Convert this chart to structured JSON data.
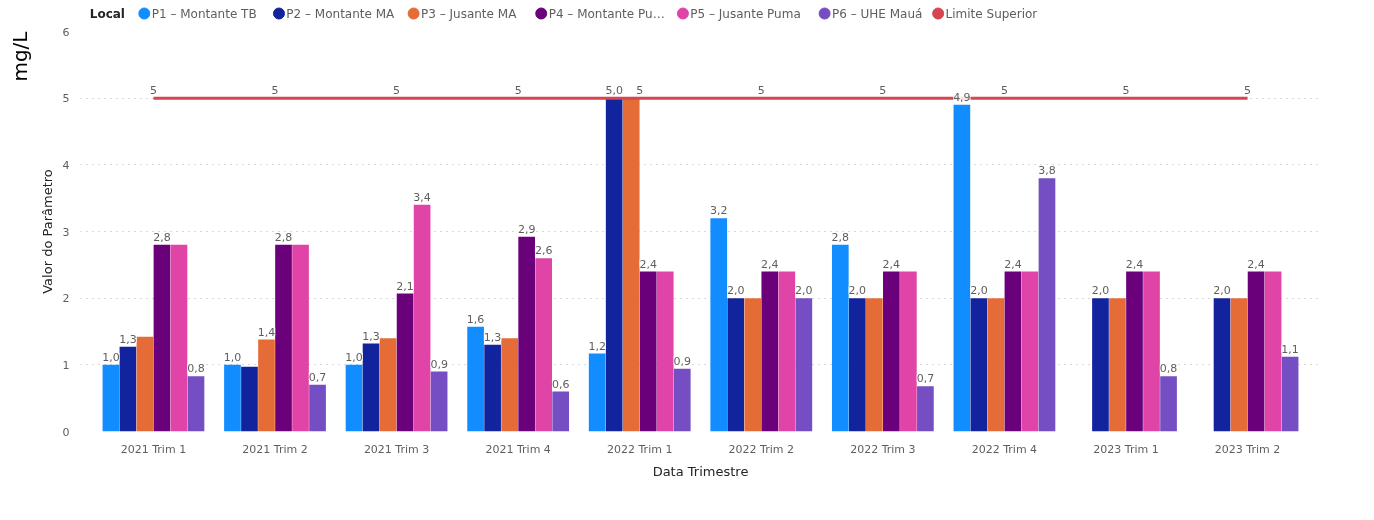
{
  "chart_data": {
    "type": "bar",
    "legend_title": "Local",
    "xlabel": "Data Trimestre",
    "ylabel": "Valor do Parâmetro",
    "annotations": [
      "mg/L"
    ],
    "categories": [
      "2021 Trim 1",
      "2021 Trim 2",
      "2021 Trim 3",
      "2021 Trim 4",
      "2022 Trim 1",
      "2022 Trim 2",
      "2022 Trim 3",
      "2022 Trim 4",
      "2023 Trim 1",
      "2023 Trim 2"
    ],
    "series": [
      {
        "name": "P1 – Montante TB",
        "color": "#118dff",
        "values": [
          1.0,
          1.0,
          1.0,
          1.57,
          1.17,
          3.2,
          2.8,
          4.9,
          null,
          null
        ],
        "value_labels": [
          "1,0",
          "1,0",
          "1,0",
          "1,6",
          "1,2",
          "3,2",
          "2,8",
          "4,9",
          null,
          null
        ]
      },
      {
        "name": "P2 – Montante MA",
        "color": "#12239e",
        "values": [
          1.27,
          0.97,
          1.32,
          1.3,
          5.0,
          2.0,
          2.0,
          2.0,
          2.0,
          2.0
        ],
        "value_labels": [
          "1,3",
          null,
          "1,3",
          "1,3",
          "5,0",
          "2,0",
          "2,0",
          "2,0",
          "2,0",
          "2,0"
        ]
      },
      {
        "name": "P3 – Jusante MA",
        "color": "#e66c37",
        "values": [
          1.42,
          1.38,
          1.4,
          1.4,
          5.0,
          2.0,
          2.0,
          2.0,
          2.0,
          2.0
        ],
        "value_labels": [
          null,
          "1,4",
          null,
          null,
          null,
          null,
          null,
          null,
          null,
          null
        ]
      },
      {
        "name": "P4 – Montante Pu…",
        "color": "#6b007b",
        "values": [
          2.8,
          2.8,
          2.07,
          2.92,
          2.4,
          2.4,
          2.4,
          2.4,
          2.4,
          2.4
        ],
        "value_labels": [
          "2,8",
          "2,8",
          "2,1",
          "2,9",
          "2,4",
          "2,4",
          "2,4",
          "2,4",
          "2,4",
          "2,4"
        ]
      },
      {
        "name": "P5 – Jusante Puma",
        "color": "#e044a7",
        "values": [
          2.8,
          2.8,
          3.4,
          2.6,
          2.4,
          2.4,
          2.4,
          2.4,
          2.4,
          2.4
        ],
        "value_labels": [
          null,
          null,
          "3,4",
          "2,6",
          null,
          null,
          null,
          null,
          null,
          null
        ]
      },
      {
        "name": "P6 – UHE Mauá",
        "color": "#744ec2",
        "values": [
          0.83,
          0.7,
          0.9,
          0.6,
          0.94,
          2.0,
          0.68,
          3.8,
          0.83,
          1.12
        ],
        "value_labels": [
          "0,8",
          "0,7",
          "0,9",
          "0,6",
          "0,9",
          "2,0",
          "0,7",
          "3,8",
          "0,8",
          "1,1"
        ]
      },
      {
        "name": "Limite Superior",
        "type": "line",
        "color": "#d64550",
        "values": [
          5,
          5,
          5,
          5,
          5,
          5,
          5,
          5,
          5,
          5
        ],
        "value_labels": [
          "5",
          "5",
          "5",
          "5",
          "5",
          "5",
          "5",
          "5",
          "5",
          "5"
        ]
      }
    ],
    "ylim": [
      0,
      6
    ],
    "yticks": [
      0,
      1,
      2,
      3,
      4,
      5,
      6
    ],
    "grid": "y",
    "legend": "top",
    "marker": "none"
  }
}
